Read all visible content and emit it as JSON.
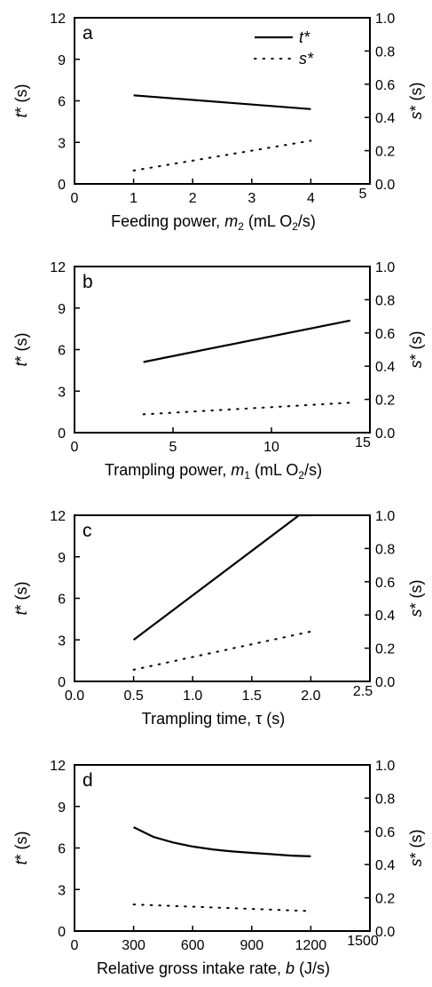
{
  "figure": {
    "line_color": "#000000",
    "legend": [
      {
        "label": "t*",
        "style": "solid"
      },
      {
        "label": "s*",
        "style": "dotted"
      }
    ]
  },
  "chart_data": [
    {
      "type": "line",
      "panel_label": "a",
      "xlabel": "Feeding power, m2 (mL O2/s)",
      "xlabel_parts": [
        {
          "text": "Feeding power, ",
          "style": "normal"
        },
        {
          "text": "m",
          "style": "italic"
        },
        {
          "text": "2",
          "style": "sub"
        },
        {
          "text": " (mL O",
          "style": "normal"
        },
        {
          "text": "2",
          "style": "sub"
        },
        {
          "text": "/s)",
          "style": "normal"
        }
      ],
      "ylabel_left": "t* (s)",
      "ylabel_right": "s* (s)",
      "xlim": [
        0,
        5
      ],
      "xticks": [
        "0",
        "1",
        "2",
        "3",
        "4",
        "5"
      ],
      "ylim_left": [
        0,
        12
      ],
      "yticks_left": [
        "0",
        "3",
        "6",
        "9",
        "12"
      ],
      "ylim_right": [
        0,
        1
      ],
      "yticks_right": [
        "0.0",
        "0.2",
        "0.4",
        "0.6",
        "0.8",
        "1.0"
      ],
      "legend_placement": "top-right",
      "series": [
        {
          "name": "t*",
          "axis": "left",
          "style": "solid",
          "x": [
            1,
            4
          ],
          "y": [
            6.4,
            5.4
          ]
        },
        {
          "name": "s*",
          "axis": "right",
          "style": "dotted",
          "x": [
            1,
            4
          ],
          "y": [
            0.08,
            0.26
          ]
        }
      ]
    },
    {
      "type": "line",
      "panel_label": "b",
      "xlabel": "Trampling power, m1 (mL O2/s)",
      "xlabel_parts": [
        {
          "text": "Trampling power, ",
          "style": "normal"
        },
        {
          "text": "m",
          "style": "italic"
        },
        {
          "text": "1",
          "style": "sub"
        },
        {
          "text": " (mL O",
          "style": "normal"
        },
        {
          "text": "2",
          "style": "sub"
        },
        {
          "text": "/s)",
          "style": "normal"
        }
      ],
      "ylabel_left": "t* (s)",
      "ylabel_right": "s* (s)",
      "xlim": [
        0,
        15
      ],
      "xticks": [
        "0",
        "5",
        "10",
        "15"
      ],
      "ylim_left": [
        0,
        12
      ],
      "yticks_left": [
        "0",
        "3",
        "6",
        "9",
        "12"
      ],
      "ylim_right": [
        0,
        1
      ],
      "yticks_right": [
        "0.0",
        "0.2",
        "0.4",
        "0.6",
        "0.8",
        "1.0"
      ],
      "series": [
        {
          "name": "t*",
          "axis": "left",
          "style": "solid",
          "x": [
            3.5,
            14
          ],
          "y": [
            5.1,
            8.1
          ]
        },
        {
          "name": "s*",
          "axis": "right",
          "style": "dotted",
          "x": [
            3.5,
            14
          ],
          "y": [
            0.11,
            0.18
          ]
        }
      ]
    },
    {
      "type": "line",
      "panel_label": "c",
      "xlabel": "Trampling time, τ (s)",
      "xlabel_parts": [
        {
          "text": "Trampling time, τ (s)",
          "style": "normal"
        }
      ],
      "ylabel_left": "t* (s)",
      "ylabel_right": "s* (s)",
      "xlim": [
        0,
        2.5
      ],
      "xticks": [
        "0.0",
        "0.5",
        "1.0",
        "1.5",
        "2.0",
        "2.5"
      ],
      "ylim_left": [
        0,
        12
      ],
      "yticks_left": [
        "0",
        "3",
        "6",
        "9",
        "12"
      ],
      "ylim_right": [
        0,
        1
      ],
      "yticks_right": [
        "0.0",
        "0.2",
        "0.4",
        "0.6",
        "0.8",
        "1.0"
      ],
      "series": [
        {
          "name": "t*",
          "axis": "left",
          "style": "solid",
          "x": [
            0.5,
            1.9,
            2.0
          ],
          "y": [
            3.0,
            12,
            12
          ]
        },
        {
          "name": "s*",
          "axis": "right",
          "style": "dotted",
          "x": [
            0.5,
            2.0
          ],
          "y": [
            0.07,
            0.3
          ]
        }
      ]
    },
    {
      "type": "line",
      "panel_label": "d",
      "xlabel": "Relative gross intake rate, b (J/s)",
      "xlabel_parts": [
        {
          "text": "Relative gross intake rate, ",
          "style": "normal"
        },
        {
          "text": "b",
          "style": "italic"
        },
        {
          "text": " (J/s)",
          "style": "normal"
        }
      ],
      "ylabel_left": "t* (s)",
      "ylabel_right": "s* (s)",
      "xlim": [
        0,
        1500
      ],
      "xticks": [
        "0",
        "300",
        "600",
        "900",
        "1200",
        "1500"
      ],
      "ylim_left": [
        0,
        12
      ],
      "yticks_left": [
        "0",
        "3",
        "6",
        "9",
        "12"
      ],
      "ylim_right": [
        0,
        1
      ],
      "yticks_right": [
        "0.0",
        "0.2",
        "0.4",
        "0.6",
        "0.8",
        "1.0"
      ],
      "series": [
        {
          "name": "t*",
          "axis": "left",
          "style": "solid",
          "x": [
            300,
            400,
            500,
            600,
            700,
            800,
            900,
            1000,
            1100,
            1200
          ],
          "y": [
            7.5,
            6.8,
            6.4,
            6.1,
            5.9,
            5.75,
            5.65,
            5.55,
            5.45,
            5.4
          ]
        },
        {
          "name": "s*",
          "axis": "right",
          "style": "dotted",
          "x": [
            300,
            1200
          ],
          "y": [
            0.16,
            0.12
          ]
        }
      ]
    }
  ]
}
